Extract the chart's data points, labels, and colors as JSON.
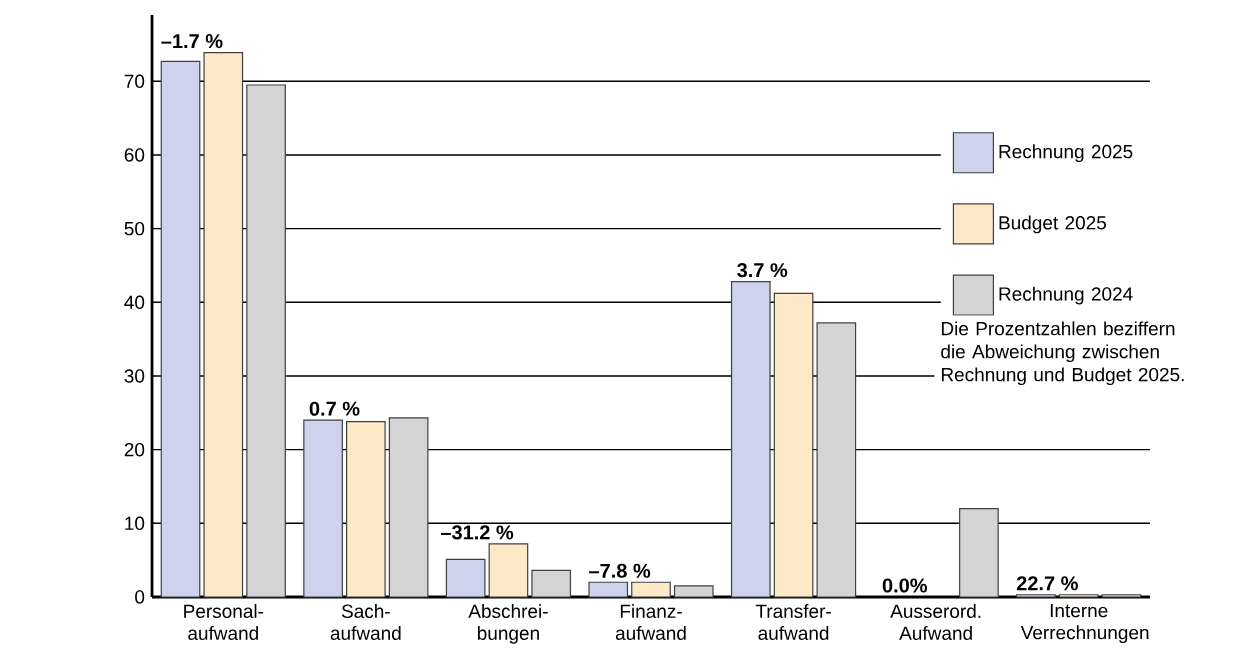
{
  "chart_data": {
    "type": "bar",
    "categories": [
      "Personal- aufwand",
      "Sach- aufwand",
      "Abschrei- bungen",
      "Finanz- aufwand",
      "Transfer- aufwand",
      "Ausserord. Aufwand",
      "Interne Verrechnungen"
    ],
    "series": [
      {
        "name": "Rechnung 2025",
        "color": "#cdd3ec",
        "values": [
          72.7,
          24.0,
          5.1,
          2.0,
          42.8,
          null,
          0.3
        ]
      },
      {
        "name": "Budget 2025",
        "color": "#fde8c8",
        "values": [
          73.9,
          23.8,
          7.2,
          2.0,
          41.2,
          null,
          0.3
        ]
      },
      {
        "name": "Rechnung 2024",
        "color": "#d4d4d4",
        "values": [
          69.5,
          24.3,
          3.6,
          1.5,
          37.2,
          12.0,
          0.3
        ]
      }
    ],
    "ylim": [
      0,
      79
    ],
    "yticks": [
      0,
      10,
      20,
      30,
      40,
      50,
      60,
      70
    ],
    "grid": "y",
    "legend": "top right",
    "annotations": [
      "–1.7 %",
      "0.7 %",
      "–31.2 %",
      "–7.8 %",
      "3.7 %",
      "0.0%",
      "22.7 %",
      "Die Prozentzahlen beziffern die Abweichung zwischen Rechnung und Budget 2025."
    ]
  }
}
